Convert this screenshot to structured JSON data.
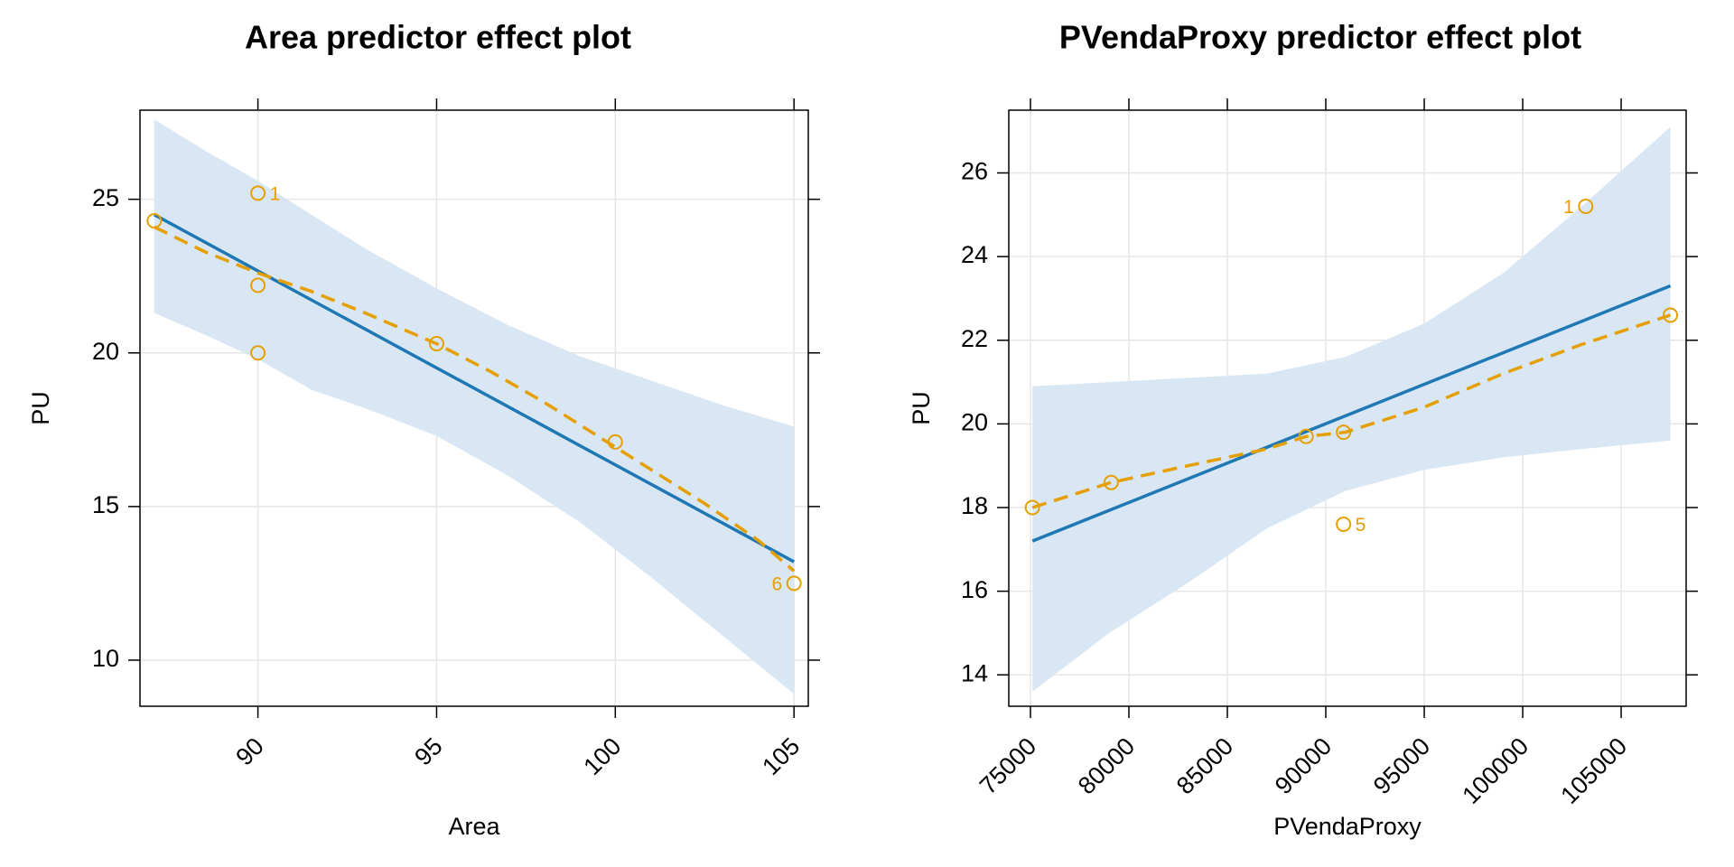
{
  "colors": {
    "fit_line": "#1f77b4",
    "smooth_line": "#e69f00",
    "points": "#e69f00",
    "band": "#d8e7f3",
    "grid": "#e6e6e6",
    "frame": "#000000"
  },
  "chart_data": [
    {
      "type": "line",
      "title": "Area predictor effect plot",
      "xlabel": "Area",
      "ylabel": "PU",
      "xlim": [
        86.7,
        105.4
      ],
      "ylim": [
        8.5,
        27.9
      ],
      "x_ticks": [
        90,
        95,
        100,
        105
      ],
      "y_ticks": [
        10,
        15,
        20,
        25
      ],
      "grid": true,
      "series": [
        {
          "kind": "fit",
          "x": [
            87.1,
            105.0
          ],
          "y": [
            24.5,
            13.2
          ]
        },
        {
          "kind": "band",
          "x": [
            87.1,
            88.5,
            90,
            91.5,
            93,
            95,
            97,
            99,
            101,
            103,
            105.0
          ],
          "upper": [
            27.6,
            26.6,
            25.6,
            24.5,
            23.4,
            22.1,
            20.9,
            19.9,
            19.1,
            18.3,
            17.6
          ],
          "lower": [
            21.3,
            20.6,
            19.8,
            18.8,
            18.2,
            17.3,
            16.0,
            14.5,
            12.7,
            10.8,
            8.9
          ]
        },
        {
          "kind": "smooth",
          "x": [
            87.1,
            88.5,
            90,
            91.5,
            93,
            95,
            96.5,
            98,
            99.5,
            101,
            102.5,
            104,
            105.0
          ],
          "y": [
            24.1,
            23.3,
            22.6,
            22.0,
            21.3,
            20.3,
            19.4,
            18.4,
            17.3,
            16.2,
            15.1,
            13.9,
            12.9
          ]
        },
        {
          "kind": "points",
          "x": [
            87.1,
            90,
            90,
            90,
            95,
            100,
            105.0
          ],
          "y": [
            24.3,
            25.2,
            22.2,
            20.0,
            20.3,
            17.1,
            12.5
          ],
          "labels": [
            "",
            "1",
            "",
            "",
            "",
            "",
            "6"
          ]
        }
      ]
    },
    {
      "type": "line",
      "title": "PVendaProxy predictor effect plot",
      "xlabel": "PVendaProxy",
      "ylabel": "PU",
      "xlim": [
        73900,
        108300
      ],
      "ylim": [
        13.25,
        27.5
      ],
      "x_ticks": [
        75000,
        80000,
        85000,
        90000,
        95000,
        100000,
        105000
      ],
      "y_ticks": [
        14,
        16,
        18,
        20,
        22,
        24,
        26
      ],
      "grid": true,
      "series": [
        {
          "kind": "fit",
          "x": [
            75100,
            107500
          ],
          "y": [
            17.2,
            23.3
          ]
        },
        {
          "kind": "band",
          "x": [
            75100,
            79000,
            83000,
            87000,
            91000,
            95000,
            99000,
            103000,
            107500
          ],
          "upper": [
            20.9,
            21.0,
            21.1,
            21.2,
            21.6,
            22.4,
            23.6,
            25.2,
            27.1
          ],
          "lower": [
            13.6,
            15.0,
            16.2,
            17.5,
            18.4,
            18.9,
            19.2,
            19.4,
            19.6
          ]
        },
        {
          "kind": "smooth",
          "x": [
            75100,
            79100,
            83000,
            87000,
            89000,
            91000,
            95000,
            99000,
            103000,
            107500
          ],
          "y": [
            18.0,
            18.6,
            19.0,
            19.4,
            19.7,
            19.8,
            20.4,
            21.2,
            21.9,
            22.6
          ]
        },
        {
          "kind": "points",
          "x": [
            75100,
            79100,
            89000,
            90900,
            90900,
            103200,
            107500
          ],
          "y": [
            18.0,
            18.6,
            19.7,
            19.8,
            17.6,
            25.2,
            22.6
          ],
          "labels": [
            "",
            "",
            "",
            "",
            "5",
            "1",
            ""
          ]
        }
      ]
    }
  ]
}
